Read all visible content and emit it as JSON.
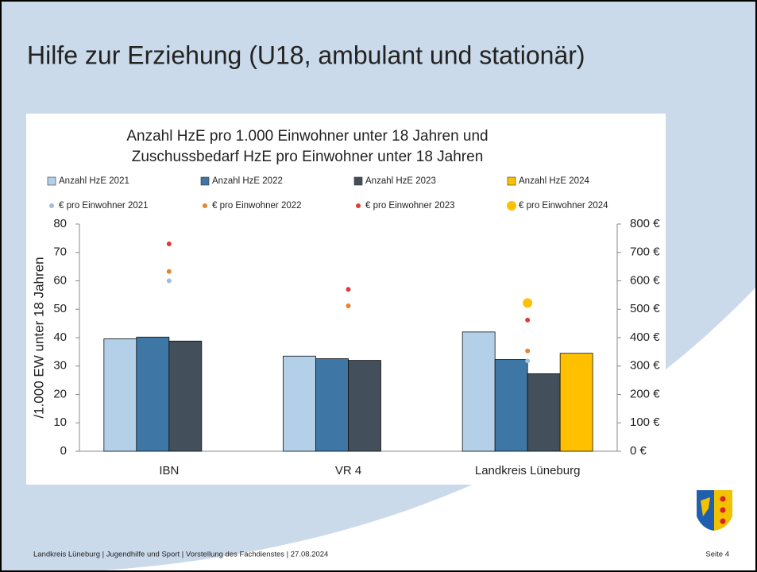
{
  "slide": {
    "title": "Hilfe zur Erziehung (U18, ambulant und stationär)",
    "footer": "Landkreis Lüneburg  |  Jugendhilfe und Sport |  Vorstellung des Fachdienstes  |  27.08.2024",
    "page": "Seite 4"
  },
  "chart_data": {
    "type": "bar",
    "title": [
      "Anzahl HzE pro 1.000 Einwohner unter 18 Jahren und",
      "Zuschussbedarf HzE pro Einwohner unter 18 Jahren"
    ],
    "y_label": "/1.000 EW unter 18 Jahren",
    "categories": [
      "IBN",
      "VR 4",
      "Landkreis Lüneburg"
    ],
    "series": [
      {
        "name": "Anzahl HzE 2021",
        "color": "#b4d0e8",
        "values": [
          39.6,
          33.5,
          42.0
        ]
      },
      {
        "name": "Anzahl HzE 2022",
        "color": "#3e77a5",
        "values": [
          40.2,
          32.6,
          32.3
        ]
      },
      {
        "name": "Anzahl HzE 2023",
        "color": "#434f5a",
        "values": [
          38.8,
          32.0,
          27.3
        ]
      },
      {
        "name": "Anzahl HzE 2024",
        "color": "#ffc000",
        "values": [
          null,
          null,
          34.5
        ]
      },
      {
        "name": "€ pro Einwohner 2021",
        "type": "scatter",
        "axis": "y2",
        "color": "#9fbcd8",
        "marker_size": 3,
        "values": [
          600,
          null,
          318
        ]
      },
      {
        "name": "€ pro Einwohner 2022",
        "type": "scatter",
        "axis": "y2",
        "color": "#e6842f",
        "marker_size": 3,
        "values": [
          633,
          512,
          353
        ]
      },
      {
        "name": "€ pro Einwohner 2023",
        "type": "scatter",
        "axis": "y2",
        "color": "#e03a3a",
        "marker_size": 3,
        "values": [
          730,
          570,
          462
        ]
      },
      {
        "name": "€ pro Einwohner 2024",
        "type": "scatter",
        "axis": "y2",
        "color": "#ffc000",
        "marker_size": 6,
        "values": [
          null,
          null,
          522
        ]
      }
    ],
    "ylim": [
      0,
      80
    ],
    "yticks": [
      0,
      10,
      20,
      30,
      40,
      50,
      60,
      70,
      80
    ],
    "y2lim": [
      0,
      800
    ],
    "y2ticks": [
      {
        "value": 0,
        "label": "0 €"
      },
      {
        "value": 100,
        "label": "100 €"
      },
      {
        "value": 200,
        "label": "200 €"
      },
      {
        "value": 300,
        "label": "300 €"
      },
      {
        "value": 400,
        "label": "400 €"
      },
      {
        "value": 500,
        "label": "500 €"
      },
      {
        "value": 600,
        "label": "600 €"
      },
      {
        "value": 700,
        "label": "700 €"
      },
      {
        "value": 800,
        "label": "800 €"
      }
    ],
    "grid": false,
    "legend": "top"
  }
}
